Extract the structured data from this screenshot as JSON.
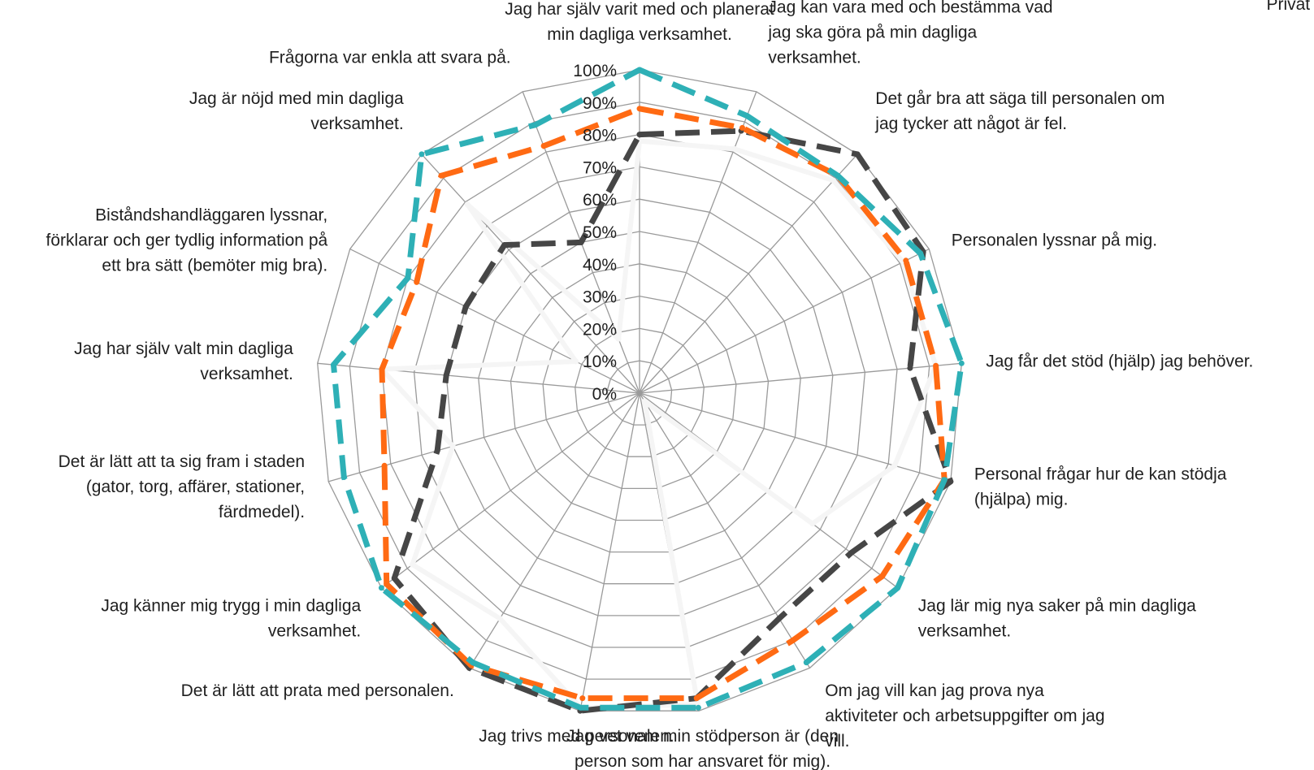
{
  "chart_data": {
    "type": "radar",
    "title": "",
    "legend_fragment": "Privat utför",
    "axis": {
      "min": 0,
      "max": 1.0,
      "step": 0.1
    },
    "tick_labels": [
      "0%",
      "10%",
      "20%",
      "30%",
      "40%",
      "50%",
      "60%",
      "70%",
      "80%",
      "90%",
      "100%"
    ],
    "categories": [
      "Jag har själv varit med och planerat min dagliga verksamhet.",
      "Jag kan vara med och bestämma vad jag ska göra på min dagliga verksamhet.",
      "Det går bra att säga till personalen om jag tycker att något är fel.",
      "Personalen lyssnar på mig.",
      "Jag får det stöd (hjälp) jag behöver.",
      "Personal frågar hur de kan stödja (hjälpa) mig.",
      "Jag lär mig nya saker på min dagliga verksamhet.",
      "Om jag vill kan jag prova nya aktiviteter och arbetsuppgifter om jag vill.",
      "Jag vet vem min stödperson är (den person som har ansvaret för mig).",
      "Jag trivs med personalen.",
      "Det är lätt att prata med personalen.",
      "Jag känner mig trygg i min dagliga verksamhet.",
      "Det är lätt att ta sig fram i staden (gator, torg, affärer, stationer, färdmedel).",
      "Jag har själv valt min dagliga verksamhet.",
      "Biståndshandläggaren lyssnar, förklarar och ger tydlig information på ett bra sätt (bemöter mig bra).",
      "Jag är nöjd med min dagliga verksamhet.",
      "Frågorna var enkla att svara på."
    ],
    "category_label_lines": [
      [
        "Jag har själv varit med och planerat",
        "min dagliga verksamhet."
      ],
      [
        "Jag kan vara med och bestämma vad",
        "jag ska göra på min dagliga",
        "verksamhet."
      ],
      [
        "Det går bra att säga till personalen om",
        "jag tycker att något är fel."
      ],
      [
        "Personalen lyssnar på mig."
      ],
      [
        "Jag får det stöd (hjälp) jag behöver."
      ],
      [
        "Personal frågar hur de kan stödja",
        "(hjälpa) mig."
      ],
      [
        "Jag lär mig nya saker på min dagliga",
        "verksamhet."
      ],
      [
        "Om jag vill kan jag prova nya",
        "aktiviteter och arbetsuppgifter om jag",
        "vill."
      ],
      [
        "Jag vet vem min stödperson är (den",
        "person som har ansvaret för mig)."
      ],
      [
        "Jag trivs med personalen."
      ],
      [
        "Det är lätt att prata med personalen."
      ],
      [
        "Jag känner mig trygg i min dagliga",
        "verksamhet."
      ],
      [
        "Det är lätt att ta sig fram i staden",
        "(gator, torg, affärer, stationer,",
        "färdmedel)."
      ],
      [
        "Jag har själv valt min dagliga",
        "verksamhet."
      ],
      [
        "Biståndshandläggaren lyssnar,",
        "förklarar och ger tydlig information på",
        "ett bra sätt (bemöter mig bra)."
      ],
      [
        "Jag är nöjd med min dagliga",
        "verksamhet."
      ],
      [
        "Frågorna var enkla att svara på."
      ]
    ],
    "series": [
      {
        "style": "solid",
        "color": "#f5f5f5",
        "values": [
          0.78,
          0.81,
          0.89,
          0.91,
          0.92,
          0.82,
          0.67,
          0.03,
          0.98,
          0.99,
          0.82,
          0.88,
          0.6,
          0.8,
          0.22,
          0.79,
          0.18
        ]
      },
      {
        "style": "dash",
        "color": "#464646",
        "values": [
          0.8,
          0.87,
          1.0,
          0.98,
          0.84,
          1.0,
          0.82,
          0.82,
          0.96,
          1.0,
          1.0,
          0.95,
          0.65,
          0.6,
          0.6,
          0.62,
          0.5
        ]
      },
      {
        "style": "dash",
        "color": "#ff6a13",
        "values": [
          0.88,
          0.88,
          0.91,
          0.92,
          0.92,
          0.98,
          0.94,
          0.9,
          0.96,
          0.96,
          0.99,
          0.98,
          0.82,
          0.8,
          0.77,
          0.91,
          0.82
        ]
      },
      {
        "style": "dash",
        "color": "#2eb0b6",
        "values": [
          1.0,
          0.92,
          0.91,
          0.97,
          1.0,
          0.98,
          1.0,
          0.98,
          0.99,
          0.99,
          0.98,
          1.0,
          0.95,
          0.95,
          0.8,
          1.0,
          0.89
        ]
      }
    ],
    "grid": true,
    "legend_position": "top-right"
  }
}
